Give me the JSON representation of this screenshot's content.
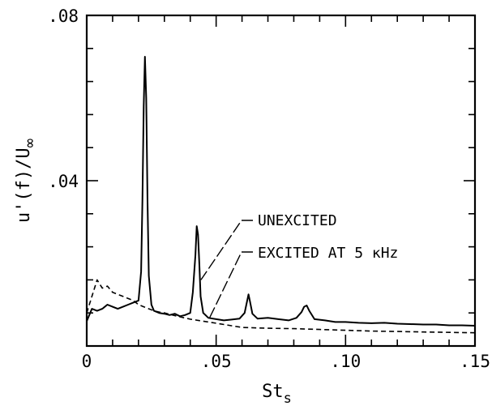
{
  "chart_data": {
    "type": "line",
    "xlabel": "St",
    "xlabel_sub": "s",
    "ylabel": "u'(f)/U",
    "ylabel_sub": "∞",
    "xlim": [
      0,
      0.15
    ],
    "ylim": [
      0,
      0.08
    ],
    "x_ticks": [
      {
        "value": 0,
        "label": "0"
      },
      {
        "value": 0.05,
        "label": ".05"
      },
      {
        "value": 0.1,
        "label": ".10"
      },
      {
        "value": 0.15,
        "label": ".15"
      }
    ],
    "y_ticks": [
      {
        "value": 0.04,
        "label": ".04"
      },
      {
        "value": 0.08,
        "label": ".08"
      }
    ],
    "grid": false,
    "series": [
      {
        "name": "UNEXCITED",
        "style": "solid",
        "color": "#000000",
        "x": [
          0.0,
          0.002,
          0.004,
          0.006,
          0.008,
          0.01,
          0.012,
          0.014,
          0.016,
          0.018,
          0.02,
          0.021,
          0.0215,
          0.022,
          0.0225,
          0.023,
          0.0235,
          0.024,
          0.025,
          0.026,
          0.028,
          0.03,
          0.032,
          0.034,
          0.036,
          0.038,
          0.04,
          0.041,
          0.042,
          0.0425,
          0.043,
          0.0435,
          0.044,
          0.045,
          0.047,
          0.05,
          0.053,
          0.056,
          0.059,
          0.061,
          0.062,
          0.0625,
          0.063,
          0.064,
          0.066,
          0.07,
          0.074,
          0.078,
          0.081,
          0.083,
          0.084,
          0.085,
          0.086,
          0.088,
          0.092,
          0.096,
          0.1,
          0.105,
          0.11,
          0.115,
          0.12,
          0.125,
          0.13,
          0.135,
          0.14,
          0.145,
          0.15
        ],
        "y": [
          0.006,
          0.009,
          0.0085,
          0.009,
          0.01,
          0.0095,
          0.009,
          0.0095,
          0.01,
          0.0105,
          0.011,
          0.018,
          0.035,
          0.058,
          0.07,
          0.06,
          0.035,
          0.017,
          0.01,
          0.0085,
          0.008,
          0.0078,
          0.0075,
          0.0078,
          0.0072,
          0.0075,
          0.008,
          0.013,
          0.022,
          0.029,
          0.027,
          0.02,
          0.012,
          0.008,
          0.0068,
          0.0065,
          0.0062,
          0.0064,
          0.0066,
          0.008,
          0.011,
          0.0125,
          0.011,
          0.0078,
          0.0066,
          0.0068,
          0.0065,
          0.0062,
          0.0068,
          0.0082,
          0.0095,
          0.0098,
          0.0085,
          0.0065,
          0.0062,
          0.0058,
          0.0058,
          0.0056,
          0.0055,
          0.0056,
          0.0054,
          0.0053,
          0.0052,
          0.0052,
          0.005,
          0.005,
          0.0049
        ]
      },
      {
        "name": "EXCITED AT 5 kHz",
        "style": "dashed",
        "color": "#000000",
        "x": [
          0.0,
          0.002,
          0.004,
          0.005,
          0.006,
          0.008,
          0.01,
          0.012,
          0.014,
          0.016,
          0.018,
          0.02,
          0.022,
          0.024,
          0.026,
          0.028,
          0.03,
          0.035,
          0.04,
          0.045,
          0.05,
          0.055,
          0.06,
          0.07,
          0.08,
          0.09,
          0.1,
          0.11,
          0.12,
          0.13,
          0.14,
          0.15
        ],
        "y": [
          0.008,
          0.012,
          0.016,
          0.015,
          0.014,
          0.0145,
          0.013,
          0.0125,
          0.012,
          0.0115,
          0.011,
          0.01,
          0.0095,
          0.009,
          0.0085,
          0.0082,
          0.008,
          0.0072,
          0.0065,
          0.006,
          0.0055,
          0.005,
          0.0045,
          0.0043,
          0.0042,
          0.004,
          0.0038,
          0.0036,
          0.0035,
          0.0034,
          0.0033,
          0.0032
        ]
      }
    ],
    "annotations": [
      {
        "text": "UNEXCITED",
        "series": 0
      },
      {
        "text": "EXCITED AT 5 κHz",
        "series": 1
      }
    ]
  }
}
